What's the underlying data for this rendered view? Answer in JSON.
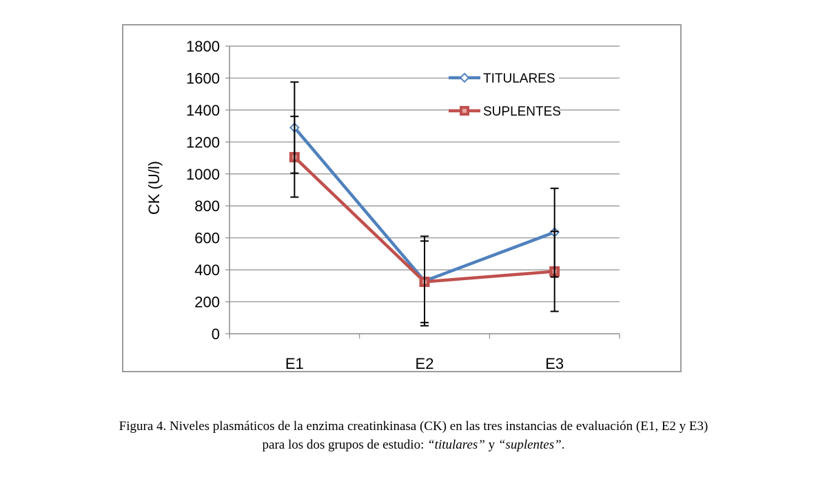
{
  "chart_data": {
    "type": "line",
    "categories": [
      "E1",
      "E2",
      "E3"
    ],
    "ylabel": "CK (U/l)",
    "xlabel": "",
    "ylim": [
      0,
      1800
    ],
    "yticks": [
      0,
      200,
      400,
      600,
      800,
      1000,
      1200,
      1400,
      1600,
      1800
    ],
    "grid": true,
    "legend_position": "top-right",
    "series": [
      {
        "name": "TITULARES",
        "color": "#4f81bd",
        "marker": "diamond",
        "values": [
          1290,
          330,
          635
        ],
        "error_low": [
          1005,
          50,
          355
        ],
        "error_high": [
          1575,
          610,
          910
        ]
      },
      {
        "name": "SUPLENTES",
        "color": "#c0504d",
        "marker": "square",
        "values": [
          1105,
          325,
          390
        ],
        "error_low": [
          855,
          70,
          140
        ],
        "error_high": [
          1360,
          580,
          640
        ]
      }
    ]
  },
  "caption": {
    "line1": "Figura 4. Niveles plasmáticos de la enzima creatinkinasa (CK) en las tres instancias de evaluación (E1, E2 y E3)",
    "line2_prefix": "para los dos grupos de estudio: ",
    "group1": "“titulares”",
    "connector": " y ",
    "group2": "“suplentes”",
    "end": "."
  }
}
